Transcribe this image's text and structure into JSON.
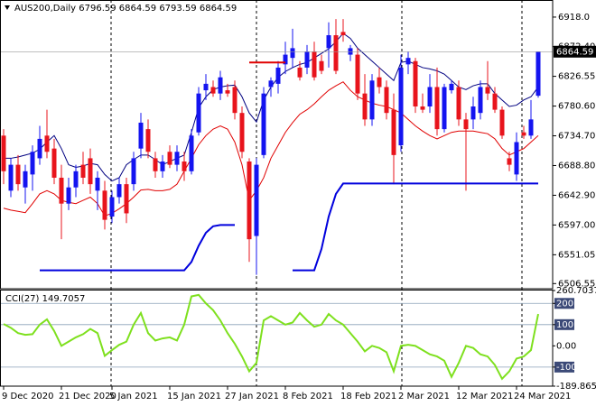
{
  "chart_data": [
    {
      "type": "candlestick",
      "title": "AUS200,Daily  6796.59 6864.59 6793.59 6864.59",
      "categories": [
        "9 Dec 2020",
        null,
        null,
        null,
        null,
        null,
        null,
        null,
        "21 Dec 2020",
        null,
        null,
        null,
        null,
        null,
        null,
        "5 Jan 2021",
        null,
        null,
        null,
        null,
        null,
        null,
        null,
        "15 Jan 2021",
        null,
        null,
        null,
        null,
        null,
        null,
        null,
        "27 Jan 2021",
        null,
        null,
        null,
        null,
        null,
        null,
        null,
        "8 Feb 2021",
        null,
        null,
        null,
        null,
        null,
        null,
        null,
        "18 Feb 2021",
        null,
        null,
        null,
        null,
        null,
        null,
        null,
        "2 Mar 2021",
        null,
        null,
        null,
        null,
        null,
        null,
        null,
        "12 Mar 2021",
        null,
        null,
        null,
        null,
        null,
        null,
        null,
        "24 Mar 2021",
        null,
        null,
        null
      ],
      "open": [
        6735,
        6650,
        6690,
        6655,
        6675,
        6700,
        6735,
        6715,
        6670,
        6630,
        6655,
        6690,
        6700,
        6650,
        6650,
        6610,
        6640,
        6660,
        6660,
        6715,
        6745,
        6700,
        6680,
        6710,
        6690,
        6695,
        6680,
        6740,
        6805,
        6810,
        6800,
        6805,
        6810,
        6770,
        6695,
        6580,
        6705,
        6810,
        6815,
        6845,
        6855,
        6840,
        6840,
        6865,
        6850,
        6870,
        6890,
        6895,
        6860,
        6860,
        6800,
        6760,
        6825,
        6810,
        6775,
        6720,
        6845,
        6850,
        6780,
        6780,
        6810,
        6745,
        6805,
        6810,
        6760,
        6760,
        6770,
        6810,
        6800,
        6775,
        6700,
        6675,
        6740,
        6735,
        6796.59
      ],
      "high": [
        6745,
        6700,
        6705,
        6690,
        6720,
        6750,
        6775,
        6730,
        6690,
        6670,
        6690,
        6710,
        6715,
        6680,
        6665,
        6650,
        6670,
        6670,
        6710,
        6770,
        6760,
        6710,
        6705,
        6720,
        6720,
        6710,
        6745,
        6810,
        6830,
        6820,
        6835,
        6815,
        6820,
        6780,
        6700,
        6700,
        6810,
        6825,
        6850,
        6880,
        6900,
        6850,
        6875,
        6880,
        6860,
        6910,
        6915,
        6915,
        6875,
        6870,
        6830,
        6830,
        6840,
        6820,
        6800,
        6860,
        6865,
        6855,
        6800,
        6830,
        6840,
        6815,
        6820,
        6820,
        6770,
        6795,
        6820,
        6850,
        6810,
        6780,
        6710,
        6740,
        6750,
        6790,
        6864.59
      ],
      "low": [
        6660,
        6640,
        6650,
        6630,
        6650,
        6690,
        6700,
        6660,
        6575,
        6620,
        6640,
        6660,
        6645,
        6620,
        6590,
        6600,
        6630,
        6600,
        6650,
        6700,
        6700,
        6670,
        6670,
        6685,
        6680,
        6665,
        6675,
        6735,
        6790,
        6795,
        6790,
        6795,
        6760,
        6700,
        6540,
        6520,
        6700,
        6795,
        6800,
        6830,
        6840,
        6820,
        6830,
        6820,
        6830,
        6840,
        6830,
        6880,
        6850,
        6790,
        6750,
        6750,
        6800,
        6760,
        6660,
        6710,
        6830,
        6770,
        6770,
        6770,
        6735,
        6740,
        6800,
        6750,
        6650,
        6745,
        6760,
        6790,
        6770,
        6730,
        6680,
        6665,
        6730,
        6730,
        6793.59
      ],
      "close": [
        6680,
        6690,
        6660,
        6680,
        6710,
        6730,
        6710,
        6670,
        6630,
        6655,
        6680,
        6670,
        6660,
        6670,
        6605,
        6640,
        6660,
        6615,
        6700,
        6755,
        6710,
        6680,
        6695,
        6690,
        6710,
        6680,
        6735,
        6800,
        6815,
        6800,
        6825,
        6800,
        6770,
        6710,
        6575,
        6690,
        6800,
        6820,
        6840,
        6860,
        6870,
        6825,
        6865,
        6825,
        6835,
        6890,
        6835,
        6890,
        6870,
        6800,
        6760,
        6820,
        6810,
        6770,
        6705,
        6840,
        6855,
        6780,
        6775,
        6810,
        6745,
        6810,
        6815,
        6760,
        6745,
        6780,
        6810,
        6800,
        6775,
        6735,
        6690,
        6725,
        6735,
        6760,
        6864.59
      ],
      "up_color": "#1414f0",
      "down_color": "#e8141c",
      "series": [
        {
          "color": "#000080",
          "line_width": 1,
          "values": [
            6700,
            6700,
            6702,
            6705,
            6708,
            6714,
            6725,
            6735,
            6715,
            6690,
            6686,
            6688,
            6692,
            6690,
            6675,
            6665,
            6670,
            6690,
            6698,
            6705,
            6705,
            6698,
            6690,
            6695,
            6700,
            6705,
            6740,
            6778,
            6795,
            6806,
            6810,
            6812,
            6813,
            6795,
            6770,
            6756,
            6790,
            6810,
            6825,
            6834,
            6840,
            6845,
            6848,
            6855,
            6862,
            6869,
            6880,
            6893,
            6885,
            6870,
            6860,
            6850,
            6840,
            6830,
            6820,
            6848,
            6850,
            6845,
            6840,
            6838,
            6835,
            6830,
            6820,
            6810,
            6806,
            6812,
            6815,
            6815,
            6800,
            6790,
            6780,
            6782,
            6790,
            6795,
            6810
          ]
        },
        {
          "color": "#e00000",
          "line_width": 1,
          "values": [
            6623,
            6620,
            6618,
            6616,
            6630,
            6645,
            6650,
            6645,
            6635,
            6632,
            6630,
            6635,
            6640,
            6630,
            6611,
            6615,
            6622,
            6630,
            6640,
            6651,
            6652,
            6650,
            6650,
            6652,
            6660,
            6680,
            6700,
            6721,
            6735,
            6745,
            6750,
            6745,
            6725,
            6690,
            6635,
            6650,
            6670,
            6700,
            6720,
            6740,
            6755,
            6768,
            6775,
            6784,
            6795,
            6805,
            6812,
            6818,
            6805,
            6795,
            6790,
            6785,
            6782,
            6780,
            6775,
            6770,
            6760,
            6750,
            6742,
            6735,
            6730,
            6735,
            6740,
            6742,
            6742,
            6742,
            6740,
            6738,
            6730,
            6715,
            6705,
            6710,
            6715,
            6725,
            6735
          ]
        },
        {
          "color": "#0000dd",
          "line_width": 2,
          "values": [
            null,
            null,
            null,
            null,
            null,
            6527,
            6527,
            6527,
            6527,
            6527,
            6527,
            6527,
            6527,
            6527,
            6527,
            6527,
            6527,
            6527,
            6527,
            6527,
            6527,
            6527,
            6527,
            6527,
            6527,
            6527,
            6540,
            6565,
            6585,
            6595,
            6597,
            6597,
            6597,
            null,
            null,
            null,
            null,
            null,
            null,
            null,
            6527,
            6527,
            6527,
            6527,
            6560,
            6610,
            6645,
            6661,
            6661,
            6661,
            6661,
            6661,
            6661,
            6661,
            6661,
            6661,
            6661,
            6661,
            6661,
            6661,
            6661,
            6661,
            6661,
            6661,
            6661,
            6661,
            6661,
            6661,
            6661,
            6661,
            6661,
            6661,
            6661,
            6661,
            6661
          ]
        },
        {
          "color": "#e00000",
          "line_width": 2,
          "values": [
            null,
            null,
            null,
            null,
            null,
            null,
            null,
            null,
            null,
            null,
            null,
            null,
            null,
            null,
            null,
            null,
            null,
            null,
            null,
            null,
            null,
            null,
            null,
            null,
            null,
            null,
            null,
            null,
            null,
            null,
            null,
            null,
            null,
            null,
            6848,
            6848,
            6848,
            6848,
            6848,
            6848,
            null,
            null,
            null,
            null,
            null,
            null,
            null,
            null,
            null,
            null,
            null,
            null,
            null,
            null,
            null,
            null,
            null,
            null,
            null,
            null,
            null,
            null,
            null,
            null,
            null,
            null,
            null,
            null,
            null,
            null,
            null,
            null,
            null,
            null,
            null
          ]
        }
      ],
      "ylim": [
        6500,
        6943
      ],
      "yticks": [
        {
          "value": 6918,
          "label": "6918.0"
        },
        {
          "value": 6872.4,
          "label": "6872.40"
        },
        6826.55,
        {
          "value": 6780.6,
          "label": "6780.60"
        },
        {
          "value": 6734.7,
          "label": "6734.70"
        },
        {
          "value": 6688.8,
          "label": "6688.80"
        },
        {
          "value": 6642.9,
          "label": "6642.90"
        },
        {
          "value": 6597,
          "label": "6597.00"
        },
        6551.05,
        6506.55
      ]
    },
    {
      "type": "line",
      "title": "CCI(27) 149.7057",
      "color": "#7ee01e",
      "values": [
        103,
        85,
        60,
        52,
        55,
        100,
        125,
        70,
        0,
        20,
        40,
        55,
        80,
        60,
        -47,
        -20,
        5,
        20,
        100,
        155,
        60,
        25,
        35,
        40,
        25,
        100,
        233,
        240,
        200,
        168,
        120,
        60,
        10,
        -50,
        -120,
        -80,
        120,
        140,
        120,
        100,
        110,
        155,
        120,
        90,
        100,
        150,
        120,
        100,
        60,
        20,
        -26,
        0,
        -10,
        -30,
        -120,
        0,
        5,
        0,
        -20,
        -40,
        -50,
        -70,
        -146,
        -80,
        0,
        -10,
        -40,
        -50,
        -90,
        -155,
        -120,
        -60,
        -50,
        -20,
        149.7057
      ],
      "ylim": [
        -189.8654,
        260.7037
      ],
      "yticks": [
        260.7037,
        200,
        100,
        {
          "value": 0,
          "label": "0.00"
        },
        -100,
        -189.8654
      ],
      "levels": [
        200,
        100,
        -100
      ]
    }
  ]
}
